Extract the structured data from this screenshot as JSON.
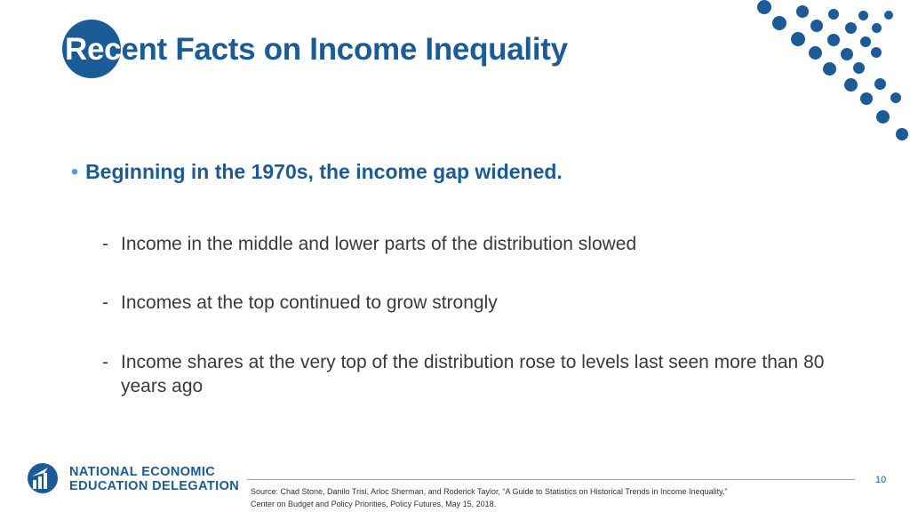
{
  "slide": {
    "title_part1": "Rec",
    "title_part2": "ent Facts on Income Inequality",
    "bullet": "Beginning in the 1970s, the income gap widened.",
    "subpoints": [
      "Income in the middle and lower parts of the distribution slowed",
      "Incomes at the top continued to grow strongly",
      "Income shares at the very top of the distribution rose to levels last seen more than 80 years ago"
    ],
    "bullet_mark": "•",
    "dash": "-"
  },
  "footer": {
    "org_line1": "NATIONAL ECONOMIC",
    "org_line2": "EDUCATION DELEGATION",
    "page_number": "10",
    "source_line1": "Source: Chad Stone, Danilo Trisi, Arloc Sherman, and Roderick Taylor, “A Guide to Statistics on Historical Trends in Income Inequality,”",
    "source_line2": "Center on Budget and Policy Priorities, Policy Futures, May 15, 2018."
  },
  "colors": {
    "brand": "#1a5b98",
    "bullet_accent": "#4aa3df",
    "body_text": "#3a3a3a"
  },
  "icons": [
    "decorative-dot-pattern",
    "need-logo-icon"
  ]
}
